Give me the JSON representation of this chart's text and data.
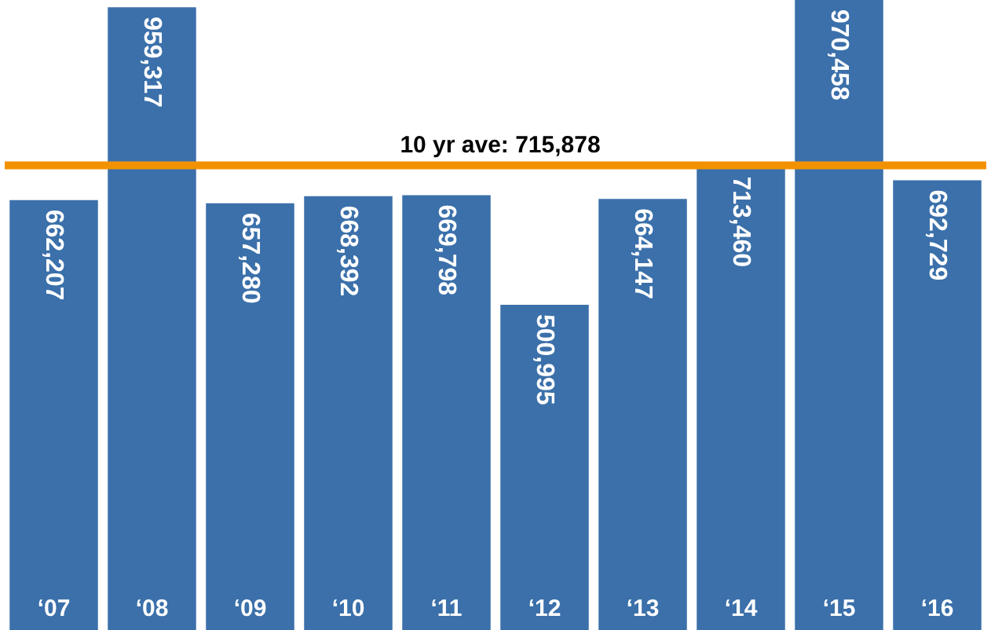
{
  "chart_data": {
    "type": "bar",
    "categories": [
      "‘07",
      "‘08",
      "‘09",
      "‘10",
      "‘11",
      "‘12",
      "‘13",
      "‘14",
      "‘15",
      "‘16"
    ],
    "values": [
      662207,
      959317,
      657280,
      668392,
      669798,
      500995,
      664147,
      713460,
      970458,
      692729
    ],
    "color": "#3b70aa",
    "value_labels": [
      "662,207",
      "959,317",
      "657,280",
      "668,392",
      "669,798",
      "500,995",
      "664,147",
      "713,460",
      "970,458",
      "692,729"
    ],
    "ref_lines": [
      {
        "axis": "y",
        "value": 715878,
        "label": "10 yr ave: 715,878",
        "color": "#f39200"
      }
    ]
  }
}
